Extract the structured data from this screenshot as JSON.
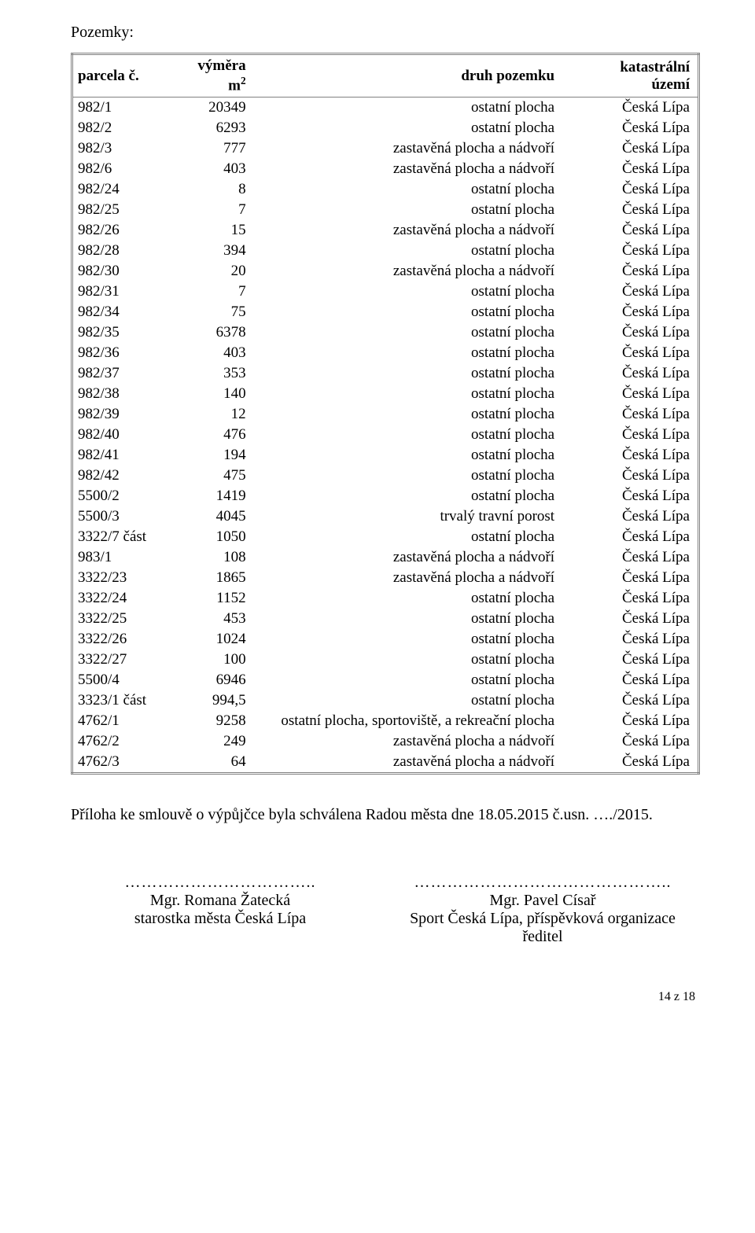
{
  "heading": "Pozemky:",
  "table": {
    "headers": {
      "parcel": "parcela č.",
      "area_prefix": "výměra m",
      "area_sup": "2",
      "type": "druh pozemku",
      "kat": "katastrální území"
    },
    "rows": [
      {
        "p": "982/1",
        "a": "20349",
        "t": "ostatní plocha",
        "k": "Česká Lípa"
      },
      {
        "p": "982/2",
        "a": "6293",
        "t": "ostatní plocha",
        "k": "Česká Lípa"
      },
      {
        "p": "982/3",
        "a": "777",
        "t": "zastavěná plocha a nádvoří",
        "k": "Česká Lípa"
      },
      {
        "p": "982/6",
        "a": "403",
        "t": "zastavěná plocha a nádvoří",
        "k": "Česká Lípa"
      },
      {
        "p": "982/24",
        "a": "8",
        "t": "ostatní plocha",
        "k": "Česká Lípa"
      },
      {
        "p": "982/25",
        "a": "7",
        "t": "ostatní plocha",
        "k": "Česká Lípa"
      },
      {
        "p": "982/26",
        "a": "15",
        "t": "zastavěná plocha a nádvoří",
        "k": "Česká Lípa"
      },
      {
        "p": "982/28",
        "a": "394",
        "t": "ostatní plocha",
        "k": "Česká Lípa"
      },
      {
        "p": "982/30",
        "a": "20",
        "t": "zastavěná plocha a nádvoří",
        "k": "Česká Lípa"
      },
      {
        "p": "982/31",
        "a": "7",
        "t": "ostatní plocha",
        "k": "Česká Lípa"
      },
      {
        "p": "982/34",
        "a": "75",
        "t": "ostatní plocha",
        "k": "Česká Lípa"
      },
      {
        "p": "982/35",
        "a": "6378",
        "t": "ostatní plocha",
        "k": "Česká Lípa"
      },
      {
        "p": "982/36",
        "a": "403",
        "t": "ostatní plocha",
        "k": "Česká Lípa"
      },
      {
        "p": "982/37",
        "a": "353",
        "t": "ostatní plocha",
        "k": "Česká Lípa"
      },
      {
        "p": "982/38",
        "a": "140",
        "t": "ostatní plocha",
        "k": "Česká Lípa"
      },
      {
        "p": "982/39",
        "a": "12",
        "t": "ostatní plocha",
        "k": "Česká Lípa"
      },
      {
        "p": "982/40",
        "a": "476",
        "t": "ostatní plocha",
        "k": "Česká Lípa"
      },
      {
        "p": "982/41",
        "a": "194",
        "t": "ostatní plocha",
        "k": "Česká Lípa"
      },
      {
        "p": "982/42",
        "a": "475",
        "t": "ostatní plocha",
        "k": "Česká Lípa"
      },
      {
        "p": "5500/2",
        "a": "1419",
        "t": "ostatní plocha",
        "k": "Česká Lípa"
      },
      {
        "p": "5500/3",
        "a": "4045",
        "t": "trvalý travní porost",
        "k": "Česká Lípa"
      },
      {
        "p": "3322/7 část",
        "a": "1050",
        "t": "ostatní plocha",
        "k": "Česká Lípa"
      },
      {
        "p": "983/1",
        "a": "108",
        "t": "zastavěná plocha a nádvoří",
        "k": "Česká Lípa"
      },
      {
        "p": "3322/23",
        "a": "1865",
        "t": "zastavěná plocha a nádvoří",
        "k": "Česká Lípa"
      },
      {
        "p": "3322/24",
        "a": "1152",
        "t": "ostatní plocha",
        "k": "Česká Lípa"
      },
      {
        "p": "3322/25",
        "a": "453",
        "t": "ostatní plocha",
        "k": "Česká Lípa"
      },
      {
        "p": "3322/26",
        "a": "1024",
        "t": "ostatní plocha",
        "k": "Česká Lípa"
      },
      {
        "p": "3322/27",
        "a": "100",
        "t": "ostatní plocha",
        "k": "Česká Lípa"
      },
      {
        "p": "5500/4",
        "a": "6946",
        "t": "ostatní plocha",
        "k": "Česká Lípa"
      },
      {
        "p": "3323/1 část",
        "a": "994,5",
        "t": "ostatní plocha",
        "k": "Česká Lípa"
      },
      {
        "p": "4762/1",
        "a": "9258",
        "t": "ostatní plocha, sportoviště, a rekreační plocha",
        "k": "Česká Lípa"
      },
      {
        "p": "4762/2",
        "a": "249",
        "t": "zastavěná plocha a nádvoří",
        "k": "Česká Lípa"
      },
      {
        "p": "4762/3",
        "a": "64",
        "t": "zastavěná plocha a nádvoří",
        "k": "Česká Lípa"
      }
    ]
  },
  "note": "Příloha ke smlouvě o výpůjčce byla schválena Radou města dne 18.05.2015 č.usn. …./2015.",
  "sig": {
    "dots_left": "……………………………..",
    "dots_right": "………………………………………..",
    "left_name": "Mgr. Romana Žatecká",
    "left_title": "starostka města Česká Lípa",
    "right_name": "Mgr. Pavel Císař",
    "right_title1": "Sport Česká Lípa, příspěvková organizace",
    "right_title2": "ředitel"
  },
  "footer": "14 z 18"
}
